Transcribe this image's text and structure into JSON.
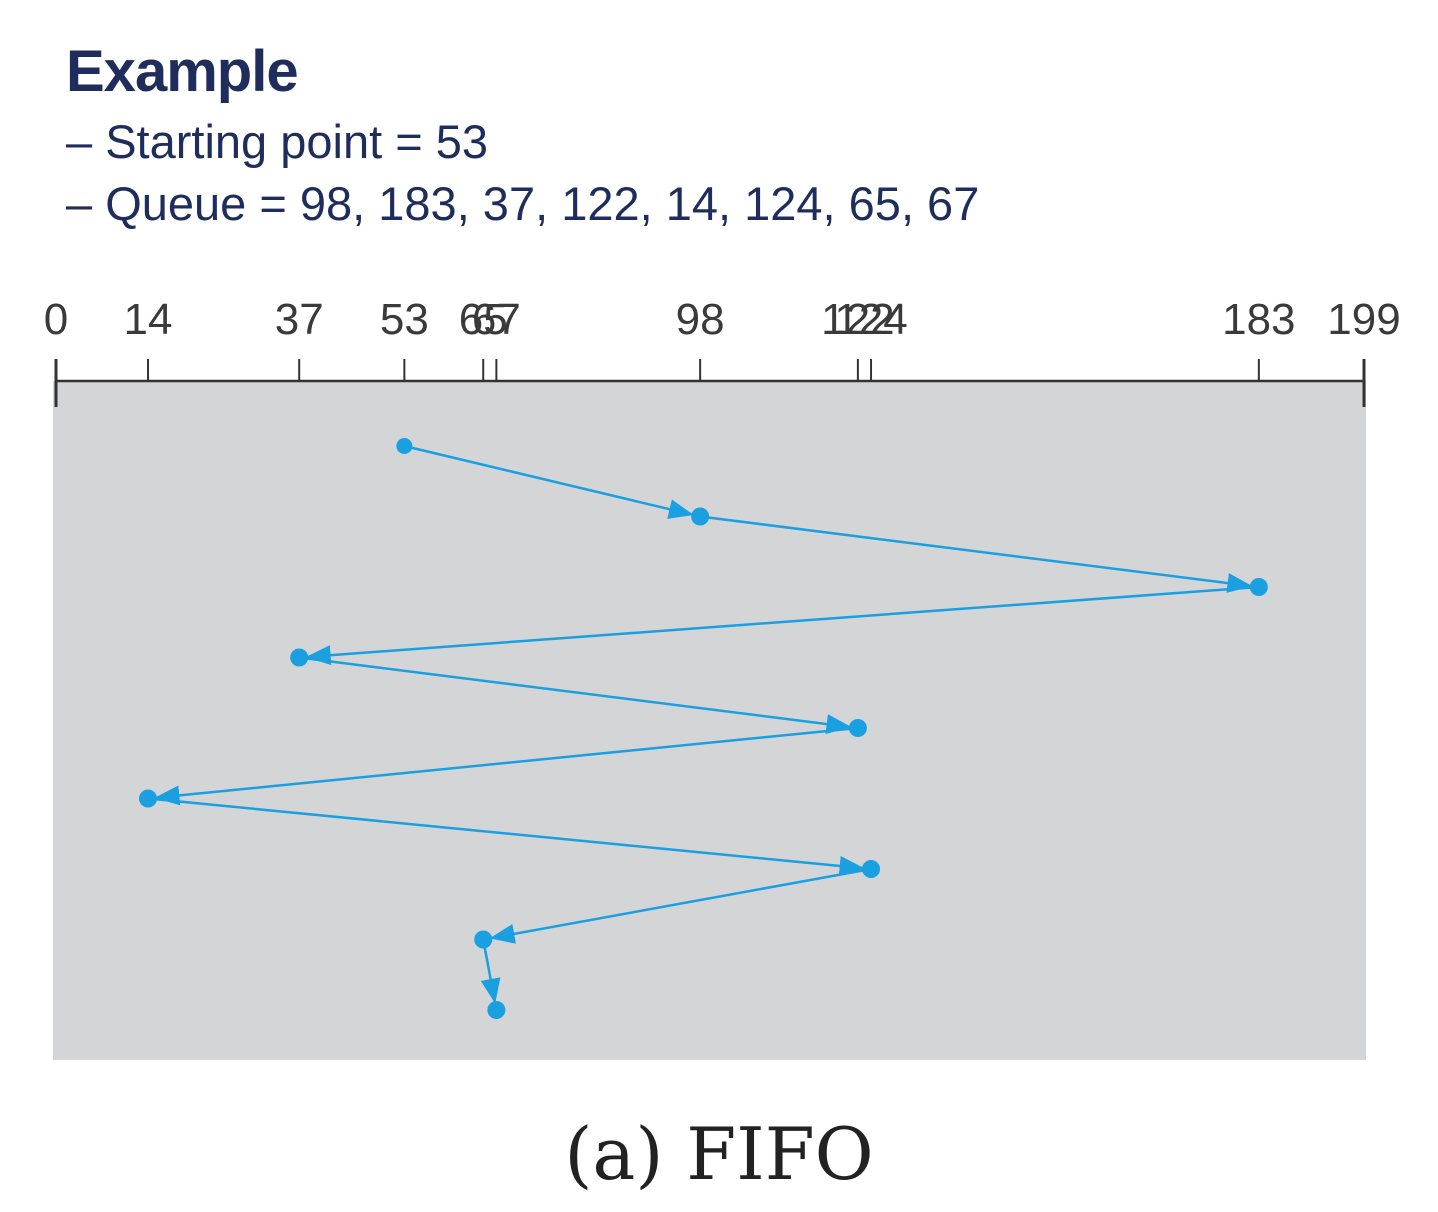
{
  "heading": {
    "title": "Example",
    "start_line": "– Starting point = 53",
    "queue_line": "– Queue = 98, 183, 37, 122, 14, 124, 65, 67"
  },
  "diagram": {
    "axis_min": 0,
    "axis_max": 199,
    "ticks": [
      0,
      14,
      37,
      53,
      65,
      67,
      98,
      122,
      124,
      183,
      199
    ],
    "path": [
      53,
      98,
      183,
      37,
      122,
      14,
      124,
      65,
      67
    ],
    "colors": {
      "path": "#1a9fe0",
      "background": "#d4d5d7",
      "axis": "#333333"
    },
    "caption": "(a)  FIFO"
  }
}
